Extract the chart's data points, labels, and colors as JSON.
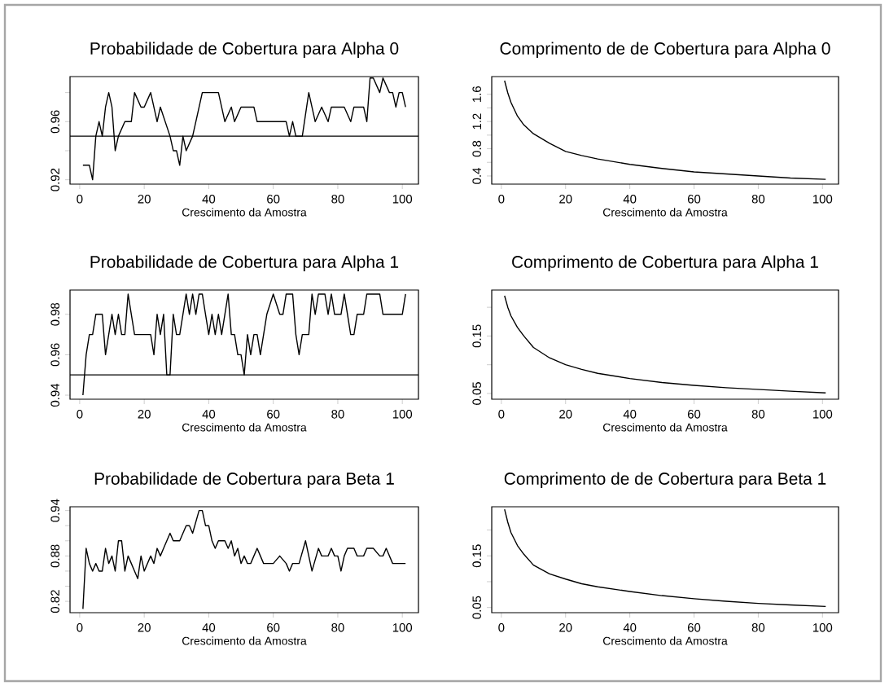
{
  "chart_data": [
    {
      "type": "line",
      "title": "Probabilidade de Cobertura para Alpha 0",
      "xlabel": "Crescimento da Amostra",
      "xlim": [
        -3,
        105
      ],
      "xticks": [
        0,
        20,
        40,
        60,
        80,
        100
      ],
      "ylim": [
        0.917,
        0.991
      ],
      "yticks": [
        0.92,
        {
          "value": 0.94,
          "label": null
        },
        0.96,
        {
          "value": 0.98,
          "label": null
        }
      ],
      "x": [
        1,
        3,
        4,
        5,
        6,
        7,
        8,
        9,
        10,
        11,
        12,
        14,
        16,
        17,
        19,
        20,
        22,
        24,
        25,
        28,
        29,
        30,
        31,
        32,
        33,
        35,
        36,
        38,
        43,
        45,
        47,
        48,
        50,
        54,
        55,
        64,
        65,
        66,
        67,
        69,
        71,
        73,
        75,
        77,
        78,
        82,
        84,
        85,
        88,
        89,
        90,
        91,
        93,
        94,
        96,
        97,
        98,
        99,
        100,
        101
      ],
      "series": [
        {
          "color": "#000000",
          "values": [
            0.93,
            0.93,
            0.92,
            0.95,
            0.96,
            0.95,
            0.97,
            0.98,
            0.97,
            0.94,
            0.95,
            0.96,
            0.96,
            0.98,
            0.97,
            0.97,
            0.98,
            0.96,
            0.97,
            0.95,
            0.94,
            0.94,
            0.93,
            0.95,
            0.94,
            0.95,
            0.96,
            0.98,
            0.98,
            0.96,
            0.97,
            0.96,
            0.97,
            0.97,
            0.96,
            0.96,
            0.95,
            0.96,
            0.95,
            0.95,
            0.98,
            0.96,
            0.97,
            0.96,
            0.97,
            0.97,
            0.96,
            0.97,
            0.97,
            0.96,
            0.99,
            0.99,
            0.98,
            0.99,
            0.98,
            0.98,
            0.97,
            0.98,
            0.98,
            0.97
          ]
        }
      ],
      "ref_lines": [
        {
          "axis": "y",
          "value": 0.95
        }
      ]
    },
    {
      "type": "line",
      "title": "Comprimento de de Cobertura para Alpha 0",
      "xlabel": "Crescimento da Amostra",
      "xlim": [
        -3,
        105
      ],
      "xticks": [
        0,
        20,
        40,
        60,
        80,
        100
      ],
      "ylim": [
        0.28,
        1.86
      ],
      "yticks": [
        0.4,
        {
          "value": 0.6,
          "label": null
        },
        0.8,
        {
          "value": 1.0,
          "label": null
        },
        1.2,
        {
          "value": 1.4,
          "label": null
        },
        1.6
      ],
      "x": [
        1,
        2,
        3,
        5,
        7,
        10,
        15,
        20,
        25,
        30,
        40,
        50,
        60,
        70,
        80,
        90,
        101
      ],
      "series": [
        {
          "color": "#000000",
          "values": [
            1.8,
            1.62,
            1.48,
            1.28,
            1.15,
            1.02,
            0.88,
            0.76,
            0.7,
            0.65,
            0.57,
            0.51,
            0.46,
            0.43,
            0.4,
            0.37,
            0.35
          ]
        }
      ]
    },
    {
      "type": "line",
      "title": "Probabilidade de Cobertura para Alpha 1",
      "xlabel": "Crescimento da Amostra",
      "xlim": [
        -3,
        105
      ],
      "xticks": [
        0,
        20,
        40,
        60,
        80,
        100
      ],
      "ylim": [
        0.938,
        0.992
      ],
      "yticks": [
        0.94,
        0.96,
        0.98
      ],
      "x": [
        1,
        2,
        3,
        4,
        5,
        7,
        8,
        9,
        10,
        11,
        12,
        13,
        14,
        15,
        16,
        17,
        22,
        23,
        24,
        25,
        26,
        27,
        28,
        29,
        30,
        31,
        32,
        33,
        34,
        35,
        36,
        37,
        38,
        39,
        40,
        41,
        42,
        43,
        44,
        45,
        46,
        47,
        48,
        49,
        50,
        51,
        52,
        53,
        54,
        55,
        56,
        58,
        60,
        62,
        63,
        64,
        66,
        67,
        68,
        69,
        71,
        72,
        73,
        74,
        76,
        77,
        78,
        79,
        81,
        82,
        83,
        84,
        85,
        86,
        88,
        89,
        93,
        94,
        100,
        101
      ],
      "series": [
        {
          "color": "#000000",
          "values": [
            0.94,
            0.96,
            0.97,
            0.97,
            0.98,
            0.98,
            0.96,
            0.97,
            0.98,
            0.97,
            0.98,
            0.97,
            0.97,
            0.99,
            0.98,
            0.97,
            0.97,
            0.96,
            0.98,
            0.97,
            0.98,
            0.95,
            0.95,
            0.98,
            0.97,
            0.97,
            0.98,
            0.99,
            0.98,
            0.99,
            0.98,
            0.99,
            0.99,
            0.98,
            0.97,
            0.98,
            0.97,
            0.98,
            0.97,
            0.98,
            0.99,
            0.97,
            0.97,
            0.96,
            0.96,
            0.95,
            0.97,
            0.96,
            0.97,
            0.97,
            0.96,
            0.98,
            0.99,
            0.98,
            0.98,
            0.99,
            0.99,
            0.97,
            0.96,
            0.97,
            0.97,
            0.99,
            0.98,
            0.99,
            0.99,
            0.98,
            0.99,
            0.98,
            0.98,
            0.99,
            0.98,
            0.97,
            0.97,
            0.98,
            0.98,
            0.99,
            0.99,
            0.98,
            0.98,
            0.99
          ]
        }
      ],
      "ref_lines": [
        {
          "axis": "y",
          "value": 0.95
        }
      ]
    },
    {
      "type": "line",
      "title": "Comprimento de Cobertura para Alpha 1",
      "xlabel": "Crescimento da Amostra",
      "xlim": [
        -3,
        105
      ],
      "xticks": [
        0,
        20,
        40,
        60,
        80,
        100
      ],
      "ylim": [
        0.04,
        0.23
      ],
      "yticks": [
        0.05,
        {
          "value": 0.1,
          "label": null
        },
        0.15,
        {
          "value": 0.2,
          "label": null
        }
      ],
      "x": [
        1,
        2,
        3,
        5,
        7,
        10,
        15,
        20,
        25,
        30,
        40,
        50,
        60,
        70,
        80,
        90,
        101
      ],
      "series": [
        {
          "color": "#000000",
          "values": [
            0.22,
            0.2,
            0.185,
            0.165,
            0.15,
            0.13,
            0.112,
            0.1,
            0.092,
            0.085,
            0.076,
            0.069,
            0.064,
            0.06,
            0.057,
            0.054,
            0.051
          ]
        }
      ]
    },
    {
      "type": "line",
      "title": "Probabilidade de Cobertura para Beta 1",
      "xlabel": "Crescimento da Amostra",
      "xlim": [
        -3,
        105
      ],
      "xticks": [
        0,
        20,
        40,
        60,
        80,
        100
      ],
      "ylim": [
        0.805,
        0.945
      ],
      "yticks": [
        0.82,
        {
          "value": 0.84,
          "label": null
        },
        {
          "value": 0.86,
          "label": null
        },
        0.88,
        {
          "value": 0.9,
          "label": null
        },
        {
          "value": 0.92,
          "label": null
        },
        0.94
      ],
      "x": [
        1,
        2,
        3,
        4,
        5,
        6,
        7,
        8,
        9,
        10,
        11,
        12,
        13,
        14,
        15,
        16,
        17,
        18,
        19,
        20,
        22,
        23,
        24,
        25,
        26,
        28,
        29,
        31,
        33,
        34,
        35,
        37,
        38,
        39,
        40,
        41,
        42,
        43,
        45,
        46,
        47,
        48,
        49,
        50,
        51,
        52,
        53,
        55,
        56,
        57,
        60,
        62,
        64,
        65,
        66,
        68,
        70,
        71,
        72,
        74,
        75,
        77,
        78,
        79,
        80,
        81,
        82,
        83,
        85,
        86,
        88,
        89,
        91,
        93,
        94,
        95,
        97,
        101
      ],
      "series": [
        {
          "color": "#000000",
          "values": [
            0.81,
            0.89,
            0.87,
            0.86,
            0.87,
            0.86,
            0.86,
            0.89,
            0.87,
            0.88,
            0.86,
            0.9,
            0.9,
            0.86,
            0.88,
            0.87,
            0.86,
            0.85,
            0.88,
            0.86,
            0.88,
            0.87,
            0.89,
            0.88,
            0.89,
            0.91,
            0.9,
            0.9,
            0.92,
            0.92,
            0.91,
            0.94,
            0.94,
            0.92,
            0.92,
            0.9,
            0.89,
            0.9,
            0.9,
            0.89,
            0.9,
            0.88,
            0.89,
            0.87,
            0.88,
            0.87,
            0.87,
            0.89,
            0.88,
            0.87,
            0.87,
            0.88,
            0.87,
            0.86,
            0.87,
            0.87,
            0.9,
            0.88,
            0.86,
            0.89,
            0.88,
            0.88,
            0.89,
            0.88,
            0.88,
            0.86,
            0.88,
            0.89,
            0.89,
            0.88,
            0.88,
            0.89,
            0.89,
            0.88,
            0.88,
            0.89,
            0.87,
            0.87
          ]
        }
      ]
    },
    {
      "type": "line",
      "title": "Comprimento de de Cobertura para Beta 1",
      "xlabel": "Crescimento da Amostra",
      "xlim": [
        -3,
        105
      ],
      "xticks": [
        0,
        20,
        40,
        60,
        80,
        100
      ],
      "ylim": [
        0.04,
        0.245
      ],
      "yticks": [
        0.05,
        {
          "value": 0.1,
          "label": null
        },
        0.15,
        {
          "value": 0.2,
          "label": null
        }
      ],
      "x": [
        1,
        2,
        3,
        5,
        7,
        10,
        15,
        20,
        25,
        30,
        40,
        50,
        60,
        70,
        80,
        90,
        101
      ],
      "series": [
        {
          "color": "#000000",
          "values": [
            0.24,
            0.215,
            0.195,
            0.17,
            0.153,
            0.132,
            0.115,
            0.105,
            0.096,
            0.09,
            0.081,
            0.073,
            0.067,
            0.062,
            0.058,
            0.055,
            0.052
          ]
        }
      ]
    }
  ]
}
